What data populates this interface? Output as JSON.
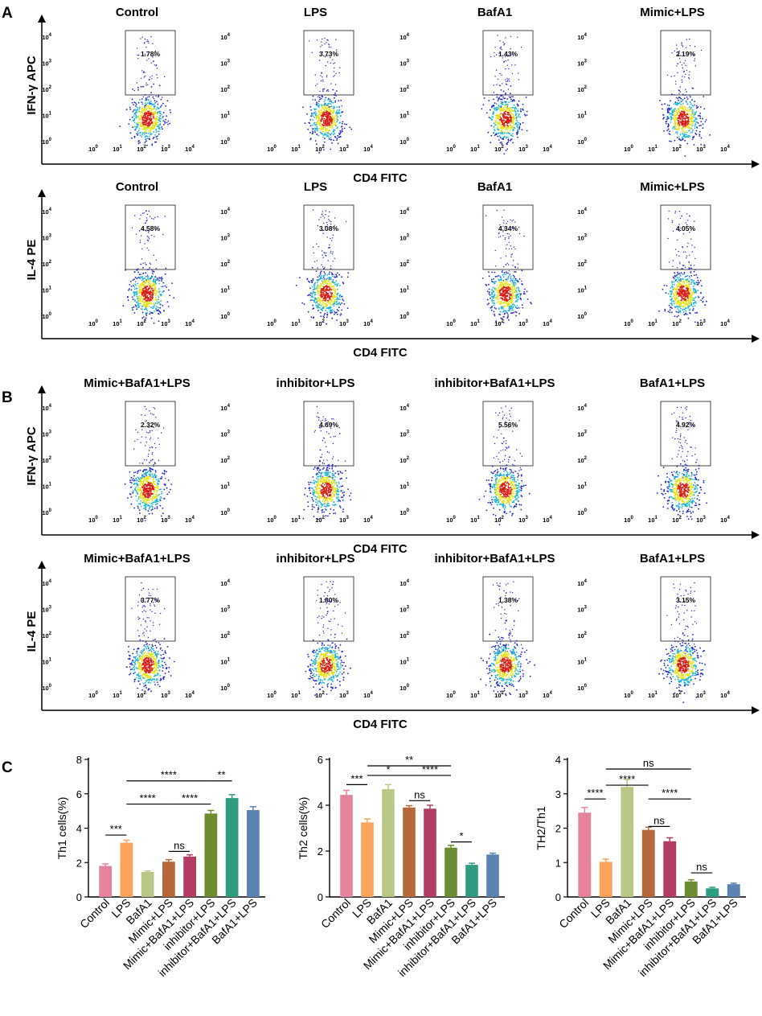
{
  "panels": {
    "a": "A",
    "b": "B",
    "c": "C"
  },
  "axis_labels": {
    "cd4": "CD4 FITC",
    "ifn": "IFN-γ APC",
    "il4": "IL-4 PE"
  },
  "flow_rows": [
    {
      "ylabel": "IFN-γ APC",
      "plots": [
        {
          "title": "Control",
          "gate_pct": "1.78%"
        },
        {
          "title": "LPS",
          "gate_pct": "3.73%"
        },
        {
          "title": "BafA1",
          "gate_pct": "1.43%"
        },
        {
          "title": "Mimic+LPS",
          "gate_pct": "2.19%"
        }
      ]
    },
    {
      "ylabel": "IL-4 PE",
      "plots": [
        {
          "title": "Control",
          "gate_pct": "4.58%"
        },
        {
          "title": "LPS",
          "gate_pct": "3.08%"
        },
        {
          "title": "BafA1",
          "gate_pct": "4.34%"
        },
        {
          "title": "Mimic+LPS",
          "gate_pct": "4.05%"
        }
      ]
    },
    {
      "ylabel": "IFN-γ APC",
      "plots": [
        {
          "title": "Mimic+BafA1+LPS",
          "gate_pct": "2.32%"
        },
        {
          "title": "inhibitor+LPS",
          "gate_pct": "4.69%"
        },
        {
          "title": "inhibitor+BafA1+LPS",
          "gate_pct": "5.56%"
        },
        {
          "title": "BafA1+LPS",
          "gate_pct": "4.92%"
        }
      ]
    },
    {
      "ylabel": "IL-4 PE",
      "plots": [
        {
          "title": "Mimic+BafA1+LPS",
          "gate_pct": "3.77%"
        },
        {
          "title": "inhibitor+LPS",
          "gate_pct": "1.80%"
        },
        {
          "title": "inhibitor+BafA1+LPS",
          "gate_pct": "1.38%"
        },
        {
          "title": "BafA1+LPS",
          "gate_pct": "3.15%"
        }
      ]
    }
  ],
  "flow_axis": {
    "tick_base": "10",
    "tick_exponents": [
      "0",
      "1",
      "2",
      "3",
      "4"
    ]
  },
  "chart_data": [
    {
      "type": "bar",
      "ylabel": "Th1 cells(%)",
      "ylim": [
        0,
        8
      ],
      "yticks": [
        "0",
        "2",
        "4",
        "6",
        "8"
      ],
      "categories": [
        "Control",
        "LPS",
        "BafA1",
        "Mimic+LPS",
        "Mimic+BafA1+LPS",
        "inhibitor+LPS",
        "inhibitor+BafA1+LPS",
        "BafA1+LPS"
      ],
      "values": [
        1.8,
        3.15,
        1.45,
        2.05,
        2.35,
        4.85,
        5.75,
        5.05
      ],
      "errors": [
        0.12,
        0.15,
        0.06,
        0.12,
        0.1,
        0.18,
        0.2,
        0.2
      ],
      "significance": [
        {
          "a": 0,
          "b": 1,
          "label": "***",
          "y": 3.6
        },
        {
          "a": 3,
          "b": 4,
          "label": "ns",
          "y": 2.65
        },
        {
          "a": 1,
          "b": 3,
          "label": "****",
          "y": 5.4
        },
        {
          "a": 3,
          "b": 5,
          "label": "****",
          "y": 5.4
        },
        {
          "a": 1,
          "b": 5,
          "label": "****",
          "y": 6.75
        },
        {
          "a": 5,
          "b": 6,
          "label": "**",
          "y": 6.75
        }
      ]
    },
    {
      "type": "bar",
      "ylabel": "Th2 cells(%)",
      "ylim": [
        0,
        6
      ],
      "yticks": [
        "0",
        "2",
        "4",
        "6"
      ],
      "categories": [
        "Control",
        "LPS",
        "BafA1",
        "Mimic+LPS",
        "Mimic+BafA1+LPS",
        "inhibitor+LPS",
        "inhibitor+BafA1+LPS",
        "BafA1+LPS"
      ],
      "values": [
        4.45,
        3.25,
        4.7,
        3.9,
        3.85,
        2.15,
        1.4,
        1.85
      ],
      "errors": [
        0.2,
        0.15,
        0.2,
        0.08,
        0.15,
        0.1,
        0.07,
        0.06
      ],
      "significance": [
        {
          "a": 0,
          "b": 1,
          "label": "***",
          "y": 4.9
        },
        {
          "a": 3,
          "b": 4,
          "label": "ns",
          "y": 4.2
        },
        {
          "a": 1,
          "b": 3,
          "label": "*",
          "y": 5.3
        },
        {
          "a": 3,
          "b": 5,
          "label": "****",
          "y": 5.3
        },
        {
          "a": 1,
          "b": 5,
          "label": "**",
          "y": 5.72
        },
        {
          "a": 5,
          "b": 6,
          "label": "*",
          "y": 2.4
        }
      ]
    },
    {
      "type": "bar",
      "ylabel": "TH2/Th1",
      "ylim": [
        0,
        4
      ],
      "yticks": [
        "0",
        "1",
        "2",
        "3",
        "4"
      ],
      "categories": [
        "Control",
        "LPS",
        "BafA1",
        "Mimic+LPS",
        "Mimic+BafA1+LPS",
        "inhibitor+LPS",
        "inhibitor+BafA1+LPS",
        "BafA1+LPS"
      ],
      "values": [
        2.45,
        1.02,
        3.2,
        1.95,
        1.62,
        0.45,
        0.25,
        0.37
      ],
      "errors": [
        0.15,
        0.08,
        0.22,
        0.08,
        0.1,
        0.05,
        0.03,
        0.03
      ],
      "significance": [
        {
          "a": 0,
          "b": 1,
          "label": "****",
          "y": 2.85
        },
        {
          "a": 3,
          "b": 4,
          "label": "ns",
          "y": 2.05
        },
        {
          "a": 1,
          "b": 3,
          "label": "****",
          "y": 3.25
        },
        {
          "a": 3,
          "b": 5,
          "label": "****",
          "y": 2.85
        },
        {
          "a": 1,
          "b": 5,
          "label": "ns",
          "y": 3.72
        },
        {
          "a": 5,
          "b": 6,
          "label": "ns",
          "y": 0.7
        }
      ]
    }
  ],
  "colors": {
    "bars": [
      "#e5839c",
      "#fba35a",
      "#b9c786",
      "#b5683a",
      "#b33d62",
      "#6d8b30",
      "#2f9b80",
      "#5b82b1"
    ],
    "axis": "#000000",
    "dot_cool": "#1c22c8",
    "dot_mid": "#18b4d8",
    "dot_warm": "#e6e21c",
    "dot_hot": "#d81c14"
  }
}
